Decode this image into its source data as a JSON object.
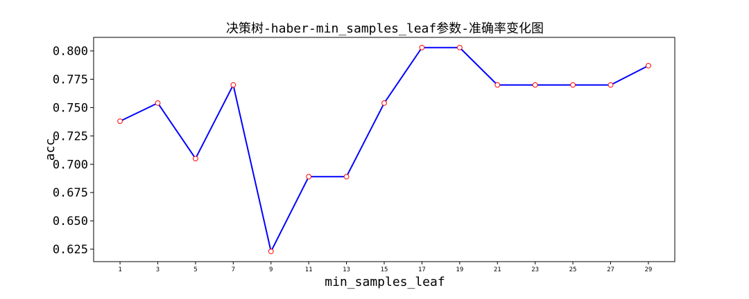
{
  "chart_data": {
    "type": "line",
    "title": "决策树-haber-min_samples_leaf参数-准确率变化图",
    "xlabel": "min_samples_leaf",
    "ylabel": "acc",
    "x": [
      1,
      3,
      5,
      7,
      9,
      11,
      13,
      15,
      17,
      19,
      21,
      23,
      25,
      27,
      29
    ],
    "series": [
      {
        "values": [
          0.738,
          0.754,
          0.705,
          0.77,
          0.623,
          0.689,
          0.689,
          0.754,
          0.803,
          0.803,
          0.77,
          0.77,
          0.77,
          0.77,
          0.787
        ]
      }
    ],
    "xticks": [
      "1",
      "3",
      "5",
      "7",
      "9",
      "11",
      "13",
      "15",
      "17",
      "19",
      "21",
      "23",
      "25",
      "27",
      "29"
    ],
    "yticks": [
      "0.625",
      "0.650",
      "0.675",
      "0.700",
      "0.725",
      "0.750",
      "0.775",
      "0.800"
    ],
    "ytick_values": [
      0.625,
      0.65,
      0.675,
      0.7,
      0.725,
      0.75,
      0.775,
      0.8
    ],
    "xlim": [
      -0.4,
      30.4
    ],
    "ylim": [
      0.614,
      0.812
    ],
    "grid": false,
    "line_color": "#0000ff",
    "marker_edge_color": "#ff0000",
    "marker_face_color": "#ffffff"
  }
}
